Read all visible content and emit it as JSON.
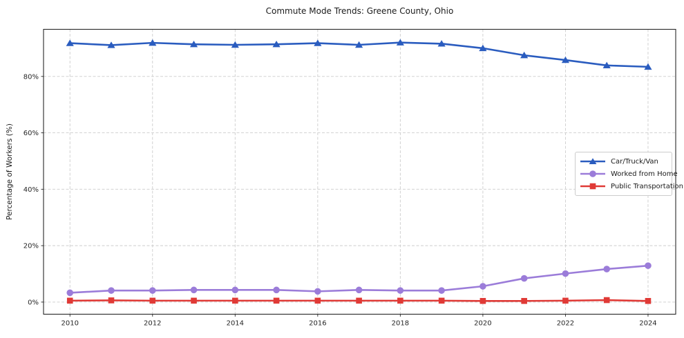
{
  "chart_data": {
    "type": "line",
    "title": "Commute Mode Trends: Greene County, Ohio",
    "xlabel": "",
    "ylabel": "Percentage of Workers (%)",
    "x": [
      2010,
      2011,
      2012,
      2013,
      2014,
      2015,
      2016,
      2017,
      2018,
      2019,
      2020,
      2021,
      2022,
      2023,
      2024
    ],
    "series": [
      {
        "name": "Car/Truck/Van",
        "color": "#2a5cbf",
        "marker": "triangle",
        "values": [
          91.8,
          91.1,
          91.9,
          91.4,
          91.2,
          91.4,
          91.8,
          91.2,
          92.0,
          91.6,
          90.0,
          87.5,
          85.8,
          83.9,
          83.4
        ]
      },
      {
        "name": "Worked from Home",
        "color": "#9b7cd9",
        "marker": "circle",
        "values": [
          3.3,
          4.1,
          4.1,
          4.3,
          4.3,
          4.3,
          3.8,
          4.3,
          4.1,
          4.1,
          5.6,
          8.4,
          10.1,
          11.7,
          12.9
        ]
      },
      {
        "name": "Public Transportation",
        "color": "#e03a36",
        "marker": "square",
        "values": [
          0.5,
          0.6,
          0.5,
          0.5,
          0.5,
          0.5,
          0.5,
          0.5,
          0.5,
          0.5,
          0.4,
          0.4,
          0.5,
          0.7,
          0.4
        ]
      }
    ],
    "x_ticks": [
      2010,
      2012,
      2014,
      2016,
      2018,
      2020,
      2022,
      2024
    ],
    "x_tick_labels": [
      "2010",
      "2012",
      "2014",
      "2016",
      "2018",
      "2020",
      "2022",
      "2024"
    ],
    "y_ticks": [
      0,
      20,
      40,
      60,
      80
    ],
    "y_tick_labels": [
      "0%",
      "20%",
      "40%",
      "60%",
      "80%"
    ],
    "xlim": [
      2009.36,
      2024.67
    ],
    "ylim": [
      -4.3,
      96.7
    ],
    "grid": true,
    "grid_color": "#cccccc",
    "spine_color": "#262626",
    "legend_position": "center right"
  }
}
